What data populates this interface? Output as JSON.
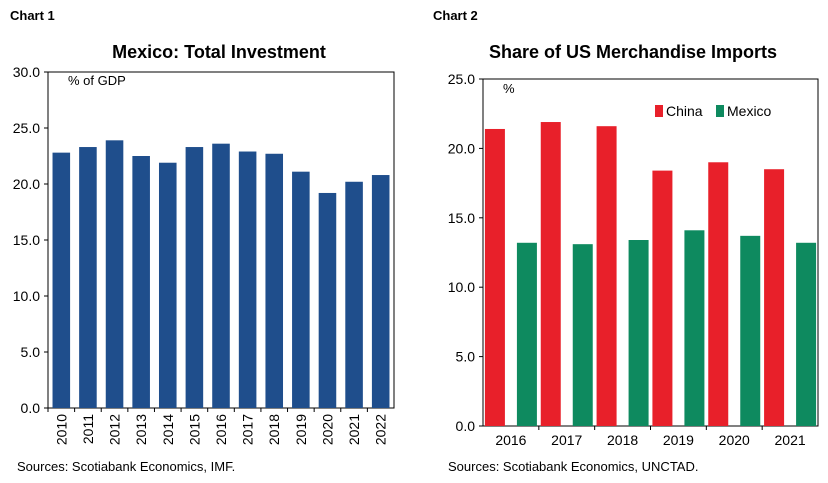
{
  "charts": [
    {
      "label": "Chart 1",
      "source": "Sources: Scotiabank Economics, IMF."
    },
    {
      "label": "Chart 2",
      "source": "Sources: Scotiabank Economics, UNCTAD."
    }
  ],
  "chart_data": [
    {
      "type": "bar",
      "title": "Mexico: Total Investment",
      "unit_label": "% of GDP",
      "xlabel": "",
      "ylabel": "",
      "ylim": [
        0,
        30
      ],
      "yticks": [
        "0.0",
        "5.0",
        "10.0",
        "15.0",
        "20.0",
        "25.0",
        "30.0"
      ],
      "categories": [
        "2010",
        "2011",
        "2012",
        "2013",
        "2014",
        "2015",
        "2016",
        "2017",
        "2018",
        "2019",
        "2020",
        "2021",
        "2022"
      ],
      "values": [
        22.8,
        23.3,
        23.9,
        22.5,
        21.9,
        23.3,
        23.6,
        22.9,
        22.7,
        21.1,
        19.2,
        20.2,
        20.8
      ],
      "colors": {
        "bar": "#1f4e8c"
      },
      "grid": false,
      "legend": "none"
    },
    {
      "type": "bar",
      "title": "Share of US Merchandise Imports",
      "unit_label": "%",
      "xlabel": "",
      "ylabel": "",
      "ylim": [
        0,
        25
      ],
      "yticks": [
        "0.0",
        "5.0",
        "10.0",
        "15.0",
        "20.0",
        "25.0"
      ],
      "categories": [
        "2016",
        "2017",
        "2018",
        "2019",
        "2020",
        "2021"
      ],
      "series": [
        {
          "name": "China",
          "color": "#e8202a",
          "values": [
            21.4,
            21.9,
            21.6,
            18.4,
            19.0,
            18.5
          ]
        },
        {
          "name": "Mexico",
          "color": "#0e8a5f",
          "values": [
            13.2,
            13.1,
            13.4,
            14.1,
            13.7,
            13.2
          ]
        }
      ],
      "grid": false,
      "legend": "top-right"
    }
  ]
}
